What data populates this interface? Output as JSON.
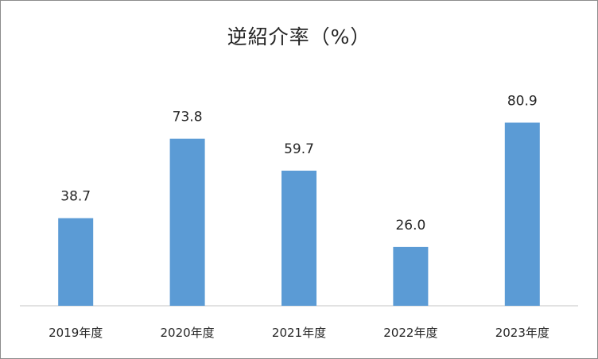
{
  "chart_data": {
    "type": "bar",
    "title": "逆紹介率（%）",
    "categories": [
      "2019年度",
      "2020年度",
      "2021年度",
      "2022年度",
      "2023年度"
    ],
    "values": [
      38.7,
      73.8,
      59.7,
      26.0,
      80.9
    ],
    "data_labels": [
      "38.7",
      "73.8",
      "59.7",
      "26.0",
      "80.9"
    ],
    "xlabel": "",
    "ylabel": "",
    "ylim": [
      0,
      100
    ],
    "grid": false,
    "legend": "none",
    "bar_color": "#5B9BD5",
    "axis_color": "#D9D9D9"
  }
}
